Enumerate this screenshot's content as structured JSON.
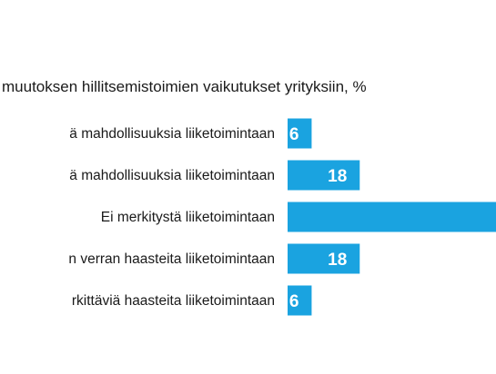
{
  "chart_data": {
    "type": "bar",
    "orientation": "horizontal",
    "title": "muutoksen hillitsemistoimien vaikutukset yrityksiin, %",
    "categories": [
      "ä mahdollisuuksia liiketoimintaan",
      "ä mahdollisuuksia liiketoimintaan",
      "Ei merkitystä liiketoimintaan",
      "n verran haasteita liiketoimintaan",
      "rkittäviä haasteita liiketoimintaan"
    ],
    "values": [
      6,
      18,
      52,
      18,
      6
    ],
    "value_labels": [
      "6",
      "18",
      "",
      "18",
      "6"
    ],
    "xlim": [
      0,
      52
    ],
    "grid": false,
    "legend": "none",
    "bar_color": "#1aa3e0",
    "label_color": "#ffffff",
    "text_color": "#1a1a1a"
  }
}
